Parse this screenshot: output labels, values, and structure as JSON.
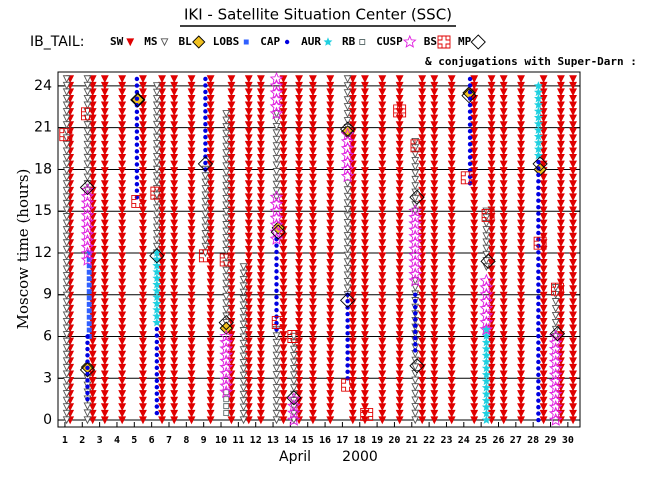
{
  "chart_data": {
    "type": "timeline",
    "title": "IKI - Satellite Situation Center (SSC)",
    "legend_label": "IB_TAIL:",
    "note": "& conjugations with Super-Darn :",
    "ylabel": "Moscow time (hours)",
    "xlabel_month": "April",
    "xlabel_year": "2000",
    "xlim": [
      0.6,
      30.7
    ],
    "ylim": [
      -0.5,
      25
    ],
    "xticks": [
      1,
      2,
      3,
      4,
      5,
      6,
      7,
      8,
      9,
      10,
      11,
      12,
      13,
      14,
      15,
      16,
      17,
      18,
      19,
      20,
      21,
      22,
      23,
      24,
      25,
      26,
      27,
      28,
      29,
      30
    ],
    "yticks": [
      0,
      3,
      6,
      9,
      12,
      15,
      18,
      21,
      24
    ],
    "grid": true,
    "series": [
      {
        "name": "SW",
        "color": "#e00000",
        "marker": "triangle-filled",
        "intervals": [
          [
            1.3,
            0,
            24.5
          ],
          [
            2.6,
            0,
            24.5
          ],
          [
            3.3,
            0,
            24.5
          ],
          [
            4.3,
            0,
            24.5
          ],
          [
            5.5,
            0,
            24.5
          ],
          [
            6.6,
            0,
            24.5
          ],
          [
            7.3,
            0,
            24.5
          ],
          [
            8.3,
            0,
            24.5
          ],
          [
            9.4,
            0,
            24.5
          ],
          [
            10.6,
            0,
            24.5
          ],
          [
            11.6,
            0,
            24.5
          ],
          [
            12.3,
            0,
            24.5
          ],
          [
            13.6,
            0,
            24.5
          ],
          [
            14.5,
            0,
            24.5
          ],
          [
            15.3,
            0,
            24.5
          ],
          [
            16.3,
            0,
            24.5
          ],
          [
            17.6,
            0,
            24.5
          ],
          [
            18.3,
            0,
            24.5
          ],
          [
            19.3,
            0,
            24.5
          ],
          [
            20.3,
            0,
            24.5
          ],
          [
            21.6,
            0,
            24.5
          ],
          [
            22.3,
            0,
            24.5
          ],
          [
            23.3,
            0,
            24.5
          ],
          [
            24.6,
            0,
            24.5
          ],
          [
            25.6,
            0,
            24.5
          ],
          [
            26.3,
            0,
            24.5
          ],
          [
            27.3,
            0,
            24.5
          ],
          [
            28.6,
            0,
            24.5
          ],
          [
            29.6,
            0,
            24.5
          ],
          [
            30.3,
            0,
            24.5
          ]
        ]
      },
      {
        "name": "MS",
        "color": "#555555",
        "marker": "triangle-open",
        "intervals": [
          [
            1.1,
            0,
            24.5
          ],
          [
            2.3,
            16.5,
            24.5
          ],
          [
            2.3,
            0,
            3
          ],
          [
            6.3,
            12,
            24
          ],
          [
            9.1,
            12,
            18
          ],
          [
            10.3,
            7,
            22
          ],
          [
            11.3,
            0,
            11
          ],
          [
            13.2,
            16,
            22
          ],
          [
            13.2,
            0,
            6.5
          ],
          [
            14.2,
            0,
            6
          ],
          [
            17.3,
            21,
            24.5
          ],
          [
            17.3,
            9,
            17
          ],
          [
            21.2,
            15,
            20
          ],
          [
            21.2,
            0,
            10
          ],
          [
            25.3,
            11,
            15
          ],
          [
            29.3,
            6,
            9.5
          ]
        ]
      },
      {
        "name": "BL",
        "color": "#f0c020",
        "marker": "diamond-filled",
        "points": [
          [
            2.3,
            3.8
          ],
          [
            5.2,
            23
          ],
          [
            10.3,
            6.6
          ],
          [
            13.3,
            13.8
          ],
          [
            17.3,
            20.7
          ],
          [
            24.3,
            23.5
          ],
          [
            28.4,
            18
          ]
        ]
      },
      {
        "name": "LOBS",
        "color": "#3060ff",
        "marker": "square-small",
        "intervals": [
          [
            2.4,
            6,
            12
          ]
        ]
      },
      {
        "name": "CAP",
        "color": "#0000e0",
        "marker": "dot",
        "intervals": [
          [
            2.3,
            1.5,
            6
          ],
          [
            5.15,
            16,
            24.5
          ],
          [
            6.3,
            0.5,
            7
          ],
          [
            9.1,
            18,
            24.5
          ],
          [
            13.2,
            6.5,
            13
          ],
          [
            17.3,
            3,
            9
          ],
          [
            21.2,
            5,
            9
          ],
          [
            24.36,
            17,
            24.5
          ],
          [
            28.3,
            0,
            19
          ]
        ]
      },
      {
        "name": "AUR",
        "color": "#20d0e0",
        "marker": "star",
        "intervals": [
          [
            6.3,
            7,
            12
          ],
          [
            25.3,
            0,
            6.5
          ],
          [
            28.3,
            19,
            24
          ]
        ]
      },
      {
        "name": "RB",
        "color": "#607070",
        "marker": "square-open",
        "intervals": [
          [
            10.3,
            0.5,
            2
          ]
        ]
      },
      {
        "name": "CUSP",
        "color": "#e020e0",
        "marker": "star-open",
        "intervals": [
          [
            2.3,
            11.5,
            16.5
          ],
          [
            10.3,
            2,
            6
          ],
          [
            13.2,
            22,
            24.5
          ],
          [
            13.2,
            13,
            16
          ],
          [
            14.2,
            0,
            1.5
          ],
          [
            17.3,
            17.5,
            20.5
          ],
          [
            21.2,
            10,
            15
          ],
          [
            25.3,
            6.5,
            10
          ],
          [
            29.3,
            0,
            6
          ]
        ]
      },
      {
        "name": "BS",
        "color": "#e00000",
        "marker": "cross-square",
        "points": [
          [
            1.05,
            20.5
          ],
          [
            2.3,
            22
          ],
          [
            5.2,
            15.7
          ],
          [
            6.3,
            16.3
          ],
          [
            9.1,
            11.8
          ],
          [
            10.3,
            11.5
          ],
          [
            13.3,
            7
          ],
          [
            14.2,
            6
          ],
          [
            17.3,
            2.5
          ],
          [
            18.4,
            0.4
          ],
          [
            20.3,
            22.2
          ],
          [
            21.3,
            19.7
          ],
          [
            24.2,
            17.4
          ],
          [
            25.4,
            14.7
          ],
          [
            28.4,
            12.7
          ],
          [
            29.4,
            9.4
          ]
        ]
      },
      {
        "name": "MP",
        "color": "#000000",
        "marker": "diamond-open",
        "points": [
          [
            2.3,
            16.7
          ],
          [
            2.3,
            3.6
          ],
          [
            5.2,
            23
          ],
          [
            6.3,
            11.8
          ],
          [
            9.1,
            18.4
          ],
          [
            10.3,
            7
          ],
          [
            13.3,
            13.5
          ],
          [
            14.2,
            1.6
          ],
          [
            17.3,
            20.9
          ],
          [
            17.3,
            8.6
          ],
          [
            21.3,
            16
          ],
          [
            21.3,
            3.9
          ],
          [
            24.3,
            23.3
          ],
          [
            25.4,
            11.4
          ],
          [
            28.4,
            18.4
          ],
          [
            29.4,
            6.2
          ]
        ]
      }
    ]
  }
}
